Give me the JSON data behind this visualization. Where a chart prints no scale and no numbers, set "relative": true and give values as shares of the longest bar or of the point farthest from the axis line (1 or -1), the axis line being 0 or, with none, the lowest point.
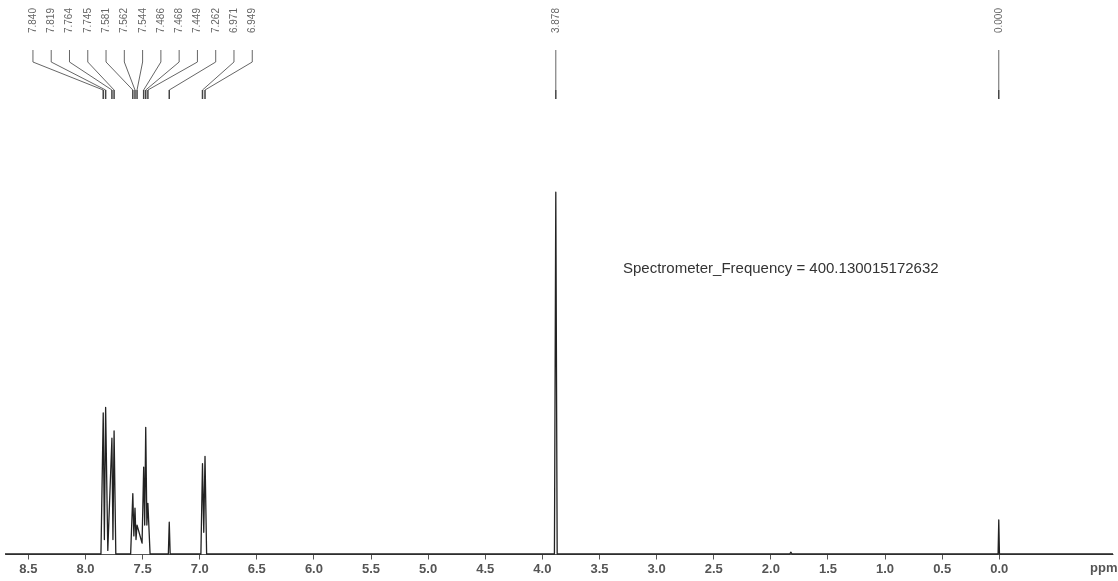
{
  "chart_data": {
    "type": "line",
    "relative": true,
    "xlabel": "ppm",
    "xlim": [
      8.7,
      -1.0
    ],
    "xticks": [
      8.5,
      {
        "value": 8,
        "label": "8.0"
      },
      7.5,
      {
        "value": 7,
        "label": "7.0"
      },
      6.5,
      {
        "value": 6,
        "label": "6.0"
      },
      5.5,
      {
        "value": 5,
        "label": "5.0"
      },
      4.5,
      {
        "value": 4,
        "label": "4.0"
      },
      3.5,
      {
        "value": 3,
        "label": "3.0"
      },
      2.5,
      {
        "value": 2,
        "label": "2.0"
      },
      1.5,
      {
        "value": 1,
        "label": "1.0"
      },
      0.5,
      {
        "value": 0,
        "label": "0.0"
      }
    ],
    "grid": false,
    "line_style": "solid",
    "series": [
      {
        "color": "#222222",
        "x": [
          8.7,
          7.86,
          7.84,
          7.83,
          7.819,
          7.8,
          7.764,
          7.755,
          7.745,
          7.73,
          7.6,
          7.581,
          7.572,
          7.562,
          7.553,
          7.544,
          7.5,
          7.486,
          7.477,
          7.468,
          7.458,
          7.449,
          7.43,
          7.27,
          7.262,
          7.254,
          6.985,
          6.971,
          6.96,
          6.949,
          6.935,
          3.89,
          3.878,
          3.866,
          1.83,
          1.82,
          1.81,
          0.006,
          0.0,
          -0.006,
          -1.0
        ],
        "values": [
          0,
          0,
          0.39,
          0.04,
          0.405,
          0.01,
          0.32,
          0.04,
          0.34,
          0,
          0,
          0.167,
          0.05,
          0.127,
          0.04,
          0.08,
          0.03,
          0.24,
          0.08,
          0.35,
          0.08,
          0.14,
          0,
          0,
          0.088,
          0,
          0,
          0.25,
          0.06,
          0.27,
          0,
          0,
          1.0,
          0,
          0,
          0.005,
          0,
          0,
          0.094,
          0,
          0
        ]
      }
    ],
    "annotations": [
      "7.840",
      "7.819",
      "7.764",
      "7.745",
      "7.581",
      "7.562",
      "7.544",
      "7.486",
      "7.468",
      "7.449",
      "7.262",
      "6.971",
      "6.949",
      "3.878",
      "0.000",
      "Spectrometer_Frequency = 400.130015172632"
    ]
  }
}
